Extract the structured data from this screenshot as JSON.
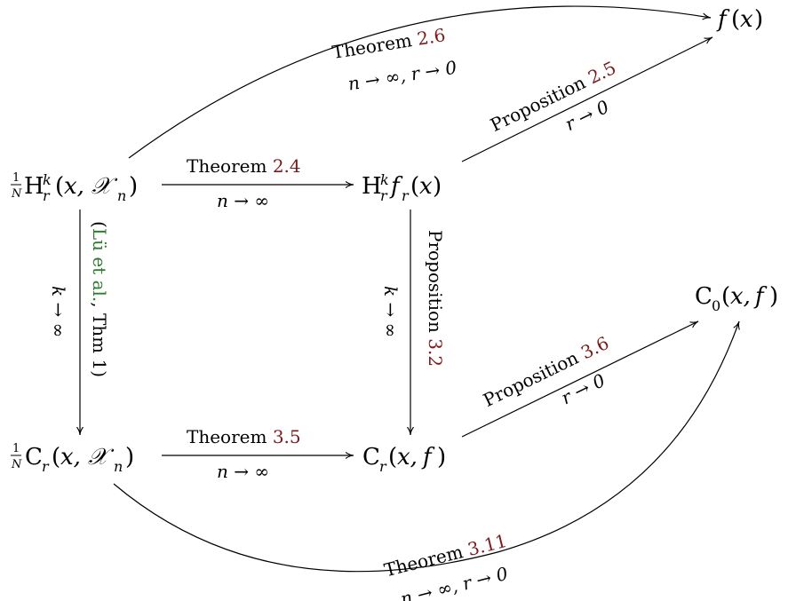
{
  "nodes": {
    "top_left": "1/N H_r^k(x, 𝒳_n)",
    "top_mid": "H_r^k f_r(x)",
    "top_right": "f(x)",
    "bottom_left": "1/N C_r(x, 𝒳_n)",
    "bottom_mid": "C_r(x, f)",
    "mid_right": "C_0(x, f)"
  },
  "edges": {
    "thm26": {
      "label": "Theorem",
      "ref": "2.6",
      "cond": "n → ∞, r → 0"
    },
    "thm24": {
      "label": "Theorem",
      "ref": "2.4",
      "cond": "n → ∞"
    },
    "prop25": {
      "label": "Proposition",
      "ref": "2.5",
      "cond": "r → 0"
    },
    "lu": {
      "cite": "Lü et al.",
      "suffix": ", Thm 1)",
      "open": "(",
      "cond": "k → ∞"
    },
    "prop32": {
      "label": "Proposition",
      "ref": "3.2",
      "cond": "k → ∞"
    },
    "prop36": {
      "label": "Proposition",
      "ref": "3.6",
      "cond": "r → 0"
    },
    "thm35": {
      "label": "Theorem",
      "ref": "3.5",
      "cond": "n → ∞"
    },
    "thm311": {
      "label": "Theorem",
      "ref": "3.11",
      "cond": "n → ∞, r → 0"
    }
  },
  "colors": {
    "ref": "#7a1a1a",
    "cite": "#2e7d2e",
    "text": "#000000"
  }
}
